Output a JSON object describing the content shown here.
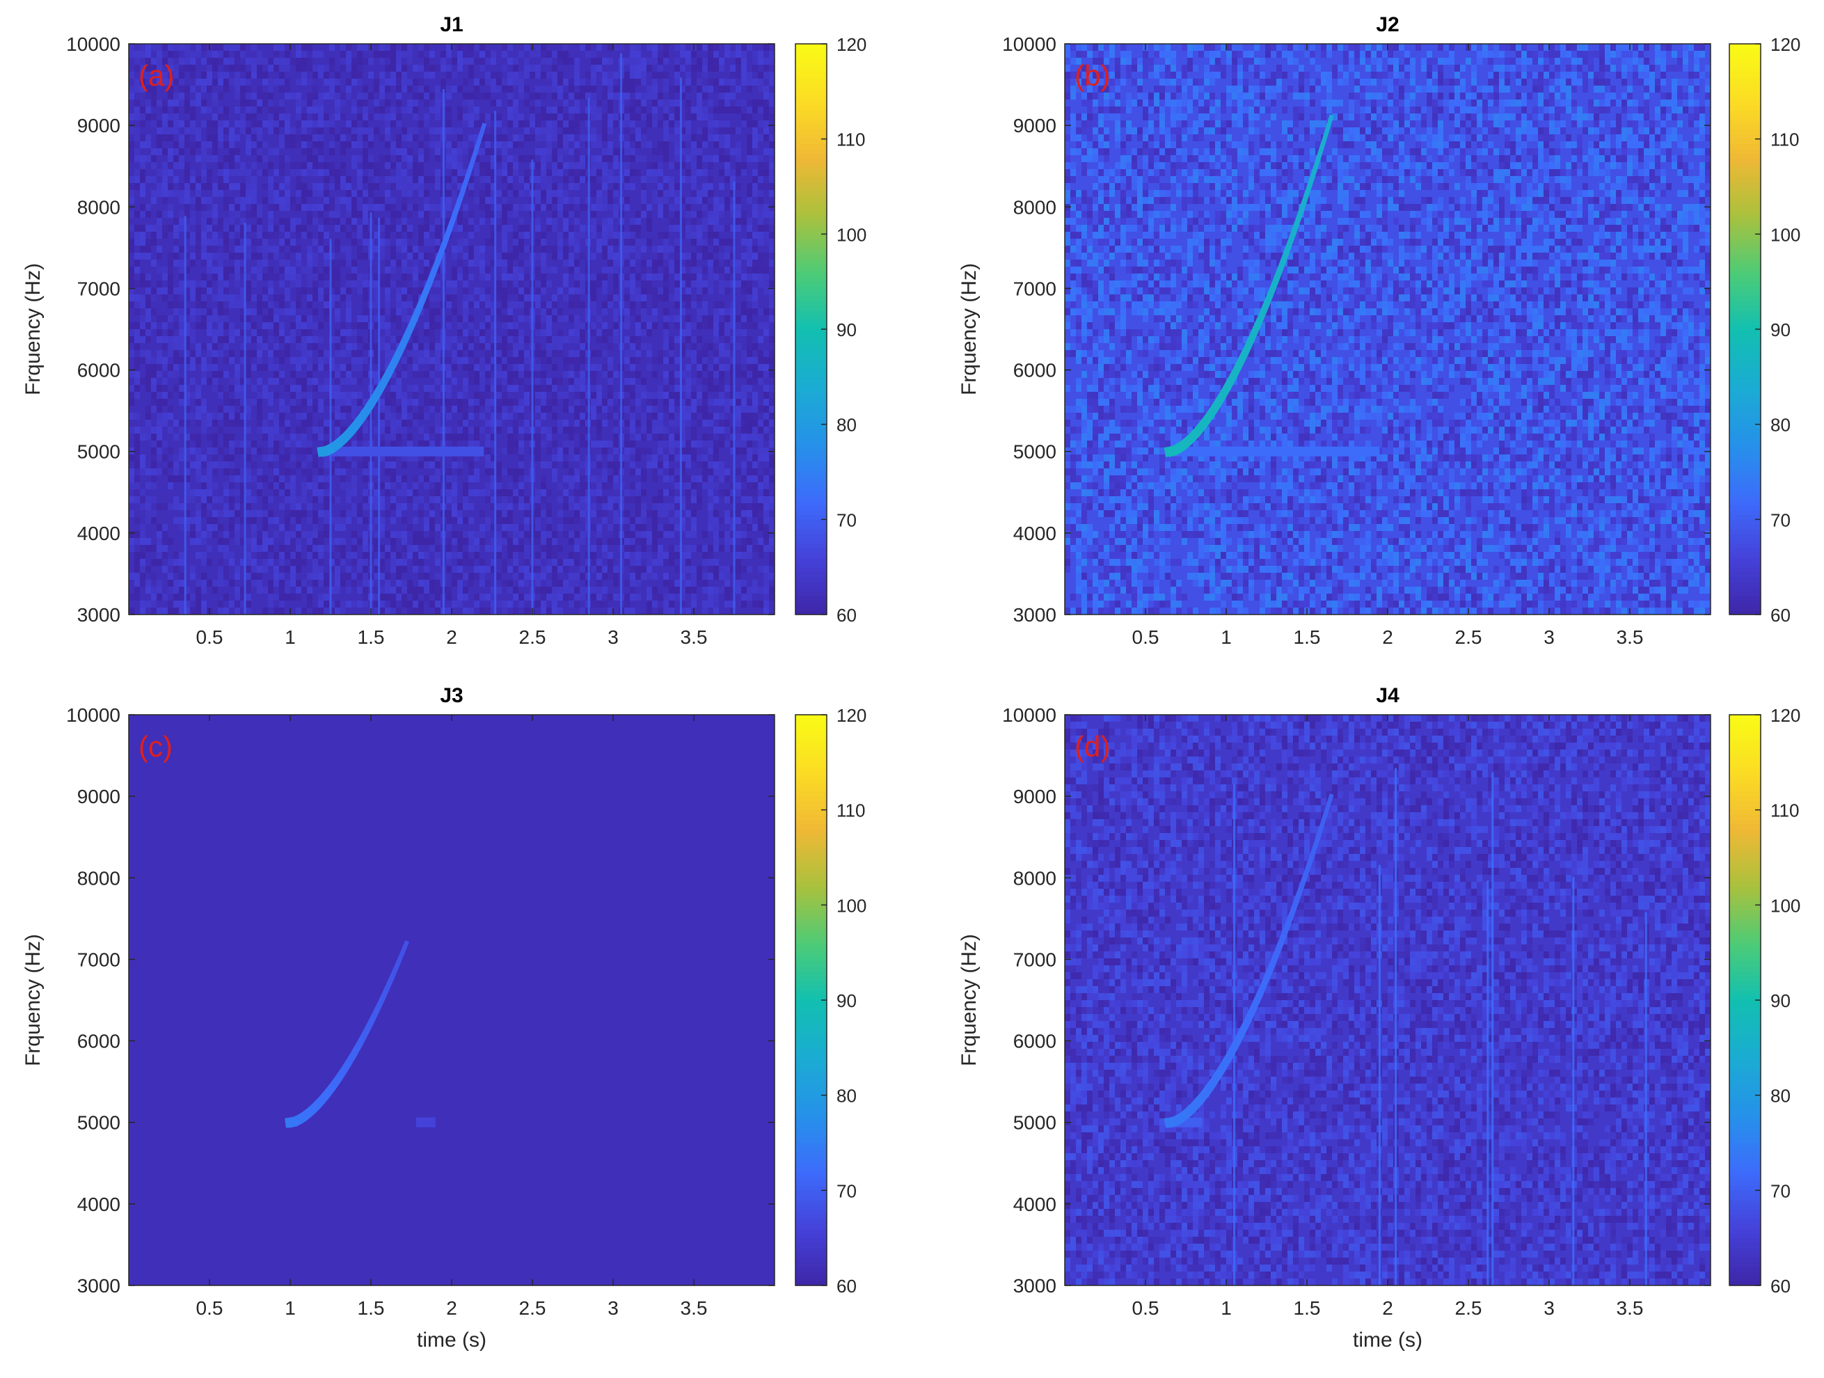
{
  "colorbar": {
    "min": 60,
    "max": 120,
    "ticks": [
      "60",
      "70",
      "80",
      "90",
      "100",
      "110",
      "120"
    ],
    "colormap": [
      "#3e26a8",
      "#4542da",
      "#3d6cfb",
      "#2592e9",
      "#1bacd2",
      "#12bfb0",
      "#4ecb76",
      "#aac13d",
      "#f0b835",
      "#fbdd24",
      "#f9fb15"
    ]
  },
  "chart_data": [
    {
      "type": "heatmap",
      "title": "J1",
      "panel_label": "(a)",
      "xlabel": "",
      "ylabel": "Frquency (Hz)",
      "xlim": [
        0,
        4
      ],
      "ylim": [
        3000,
        10000
      ],
      "xticks": [
        "0.5",
        "1",
        "1.5",
        "2",
        "2.5",
        "3",
        "3.5"
      ],
      "yticks": [
        "3000",
        "4000",
        "5000",
        "6000",
        "7000",
        "8000",
        "9000",
        "10000"
      ],
      "background_level": 62,
      "noise": 3,
      "chirp": {
        "t_start": 1.2,
        "t_end": 2.2,
        "f_start": 5000,
        "f_end": 9000,
        "peak_level": 80,
        "end_level": 70
      },
      "plateau": {
        "t_start": 1.2,
        "t_end": 2.2,
        "f": 5000,
        "level": 68
      },
      "streaks": [
        0.35,
        0.72,
        1.25,
        1.5,
        1.55,
        1.95,
        2.27,
        2.5,
        2.85,
        3.05,
        3.42,
        3.75
      ]
    },
    {
      "type": "heatmap",
      "title": "J2",
      "panel_label": "(b)",
      "xlabel": "",
      "ylabel": "Frquency (Hz)",
      "xlim": [
        0,
        4
      ],
      "ylim": [
        3000,
        10000
      ],
      "xticks": [
        "0.5",
        "1",
        "1.5",
        "2",
        "2.5",
        "3",
        "3.5"
      ],
      "yticks": [
        "3000",
        "4000",
        "5000",
        "6000",
        "7000",
        "8000",
        "9000",
        "10000"
      ],
      "background_level": 68,
      "noise": 6,
      "chirp": {
        "t_start": 0.65,
        "t_end": 1.65,
        "f_start": 5000,
        "f_end": 9100,
        "peak_level": 88,
        "end_level": 84
      },
      "plateau": {
        "t_start": 0.65,
        "t_end": 1.95,
        "f": 5000,
        "level": 72
      },
      "streaks": []
    },
    {
      "type": "heatmap",
      "title": "J3",
      "panel_label": "(c)",
      "xlabel": "time (s)",
      "ylabel": "Frquency (Hz)",
      "xlim": [
        0,
        4
      ],
      "ylim": [
        3000,
        10000
      ],
      "xticks": [
        "0.5",
        "1",
        "1.5",
        "2",
        "2.5",
        "3",
        "3.5"
      ],
      "yticks": [
        "3000",
        "4000",
        "5000",
        "6000",
        "7000",
        "8000",
        "9000",
        "10000"
      ],
      "background_level": 62,
      "noise": 0,
      "chirp": {
        "t_start": 1.0,
        "t_end": 1.72,
        "f_start": 5000,
        "f_end": 7200,
        "peak_level": 74,
        "end_level": 68
      },
      "plateau": {
        "t_start": 1.78,
        "t_end": 1.9,
        "f": 5000,
        "level": 66
      },
      "streaks": []
    },
    {
      "type": "heatmap",
      "title": "J4",
      "panel_label": "(d)",
      "xlabel": "time (s)",
      "ylabel": "Frquency (Hz)",
      "xlim": [
        0,
        4
      ],
      "ylim": [
        3000,
        10000
      ],
      "xticks": [
        "0.5",
        "1",
        "1.5",
        "2",
        "2.5",
        "3",
        "3.5"
      ],
      "yticks": [
        "3000",
        "4000",
        "5000",
        "6000",
        "7000",
        "8000",
        "9000",
        "10000"
      ],
      "background_level": 64,
      "noise": 4,
      "chirp": {
        "t_start": 0.65,
        "t_end": 1.65,
        "f_start": 5000,
        "f_end": 9000,
        "peak_level": 74,
        "end_level": 70
      },
      "plateau": {
        "t_start": 0.65,
        "t_end": 0.85,
        "f": 5000,
        "level": 70
      },
      "streaks": [
        1.05,
        1.95,
        2.05,
        2.62,
        2.65,
        3.15,
        3.6
      ]
    }
  ]
}
